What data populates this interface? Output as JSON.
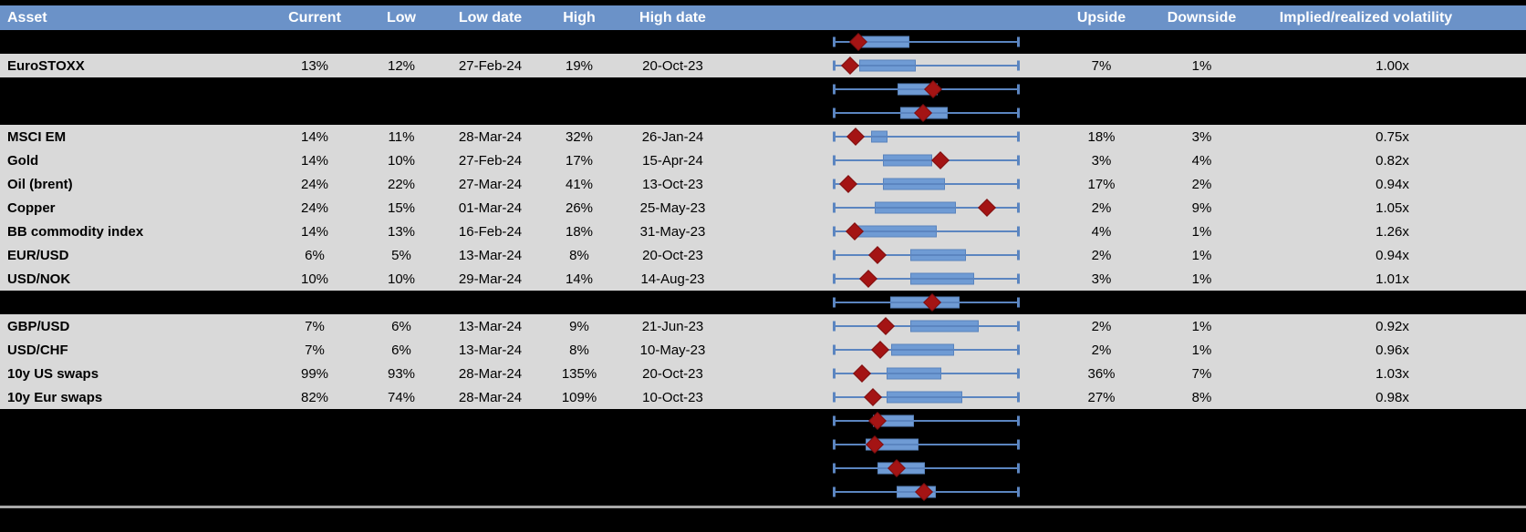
{
  "header": {
    "cols": [
      "Asset",
      "Current",
      "Low",
      "Low date",
      "High",
      "High date",
      "",
      "Upside",
      "Downside",
      "Implied/realized volatility"
    ]
  },
  "colors": {
    "header_bg": "#6B92C8",
    "header_text": "#FFFFFF",
    "row_bg": "#D9D9D9",
    "page_bg": "#000000",
    "cell_text": "#000000",
    "box_fill": "#6F9BD4",
    "box_border": "#5983BD",
    "whisker_blue": "#5B85C0",
    "marker_red": "#A41414",
    "separator_gray": "#A8A8A8"
  },
  "table": {
    "rows": [
      {
        "cells": null,
        "plot": {
          "box": [
            0.146,
            0.41
          ],
          "diamond": 0.137
        }
      },
      {
        "cells": {
          "asset": "EuroSTOXX",
          "current": "13%",
          "low": "12%",
          "low_date": "27-Feb-24",
          "high": "19%",
          "high_date": "20-Oct-23",
          "upside": "7%",
          "downside": "1%",
          "implied": "1.00x"
        },
        "plot": {
          "box": [
            0.141,
            0.444
          ],
          "diamond": 0.093
        }
      },
      {
        "cells": null,
        "plot": {
          "box": [
            0.346,
            0.561
          ],
          "diamond": 0.537
        }
      },
      {
        "cells": null,
        "plot": {
          "box": [
            0.361,
            0.615
          ],
          "diamond": 0.483
        }
      },
      {
        "cells": {
          "asset": "MSCI EM",
          "current": "14%",
          "low": "11%",
          "low_date": "28-Mar-24",
          "high": "32%",
          "high_date": "26-Jan-24",
          "upside": "18%",
          "downside": "3%",
          "implied": "0.75x"
        },
        "plot": {
          "box": [
            0.205,
            0.293
          ],
          "diamond": 0.122
        }
      },
      {
        "cells": {
          "asset": "Gold",
          "current": "14%",
          "low": "10%",
          "low_date": "27-Feb-24",
          "high": "17%",
          "high_date": "15-Apr-24",
          "upside": "3%",
          "downside": "4%",
          "implied": "0.82x"
        },
        "plot": {
          "box": [
            0.268,
            0.532
          ],
          "diamond": 0.576
        }
      },
      {
        "cells": {
          "asset": "Oil (brent)",
          "current": "24%",
          "low": "22%",
          "low_date": "27-Mar-24",
          "high": "41%",
          "high_date": "13-Oct-23",
          "upside": "17%",
          "downside": "2%",
          "implied": "0.94x"
        },
        "plot": {
          "box": [
            0.268,
            0.6
          ],
          "diamond": 0.083
        }
      },
      {
        "cells": {
          "asset": "Copper",
          "current": "24%",
          "low": "15%",
          "low_date": "01-Mar-24",
          "high": "26%",
          "high_date": "25-May-23",
          "upside": "2%",
          "downside": "9%",
          "implied": "1.05x"
        },
        "plot": {
          "box": [
            0.224,
            0.659
          ],
          "diamond": 0.824
        }
      },
      {
        "cells": {
          "asset": "BB commodity index",
          "current": "14%",
          "low": "13%",
          "low_date": "16-Feb-24",
          "high": "18%",
          "high_date": "31-May-23",
          "upside": "4%",
          "downside": "1%",
          "implied": "1.26x"
        },
        "plot": {
          "box": [
            0.132,
            0.556
          ],
          "diamond": 0.117
        }
      },
      {
        "cells": {
          "asset": "EUR/USD",
          "current": "6%",
          "low": "5%",
          "low_date": "13-Mar-24",
          "high": "8%",
          "high_date": "20-Oct-23",
          "upside": "2%",
          "downside": "1%",
          "implied": "0.94x"
        },
        "plot": {
          "box": [
            0.415,
            0.712
          ],
          "diamond": 0.239
        }
      },
      {
        "cells": {
          "asset": "USD/NOK",
          "current": "10%",
          "low": "10%",
          "low_date": "29-Mar-24",
          "high": "14%",
          "high_date": "14-Aug-23",
          "upside": "3%",
          "downside": "1%",
          "implied": "1.01x"
        },
        "plot": {
          "box": [
            0.415,
            0.756
          ],
          "diamond": 0.19
        }
      },
      {
        "cells": null,
        "plot": {
          "box": [
            0.307,
            0.678
          ],
          "diamond": 0.532
        }
      },
      {
        "cells": {
          "asset": "GBP/USD",
          "current": "7%",
          "low": "6%",
          "low_date": "13-Mar-24",
          "high": "9%",
          "high_date": "21-Jun-23",
          "upside": "2%",
          "downside": "1%",
          "implied": "0.92x"
        },
        "plot": {
          "box": [
            0.415,
            0.78
          ],
          "diamond": 0.283
        }
      },
      {
        "cells": {
          "asset": "USD/CHF",
          "current": "7%",
          "low": "6%",
          "low_date": "13-Mar-24",
          "high": "8%",
          "high_date": "10-May-23",
          "upside": "2%",
          "downside": "1%",
          "implied": "0.96x"
        },
        "plot": {
          "box": [
            0.312,
            0.649
          ],
          "diamond": 0.254
        }
      },
      {
        "cells": {
          "asset": "10y US swaps",
          "current": "99%",
          "low": "93%",
          "low_date": "28-Mar-24",
          "high": "135%",
          "high_date": "20-Oct-23",
          "upside": "36%",
          "downside": "7%",
          "implied": "1.03x"
        },
        "plot": {
          "box": [
            0.288,
            0.58
          ],
          "diamond": 0.156
        }
      },
      {
        "cells": {
          "asset": "10y Eur swaps",
          "current": "82%",
          "low": "74%",
          "low_date": "28-Mar-24",
          "high": "109%",
          "high_date": "10-Oct-23",
          "upside": "27%",
          "downside": "8%",
          "implied": "0.98x"
        },
        "plot": {
          "box": [
            0.288,
            0.693
          ],
          "diamond": 0.215
        }
      },
      {
        "cells": null,
        "plot": {
          "box": [
            0.215,
            0.434
          ],
          "diamond": 0.239
        }
      },
      {
        "cells": null,
        "plot": {
          "box": [
            0.176,
            0.459
          ],
          "diamond": 0.224
        }
      },
      {
        "cells": null,
        "plot": {
          "box": [
            0.239,
            0.493
          ],
          "diamond": 0.341
        }
      },
      {
        "cells": null,
        "plot": {
          "box": [
            0.341,
            0.551
          ],
          "diamond": 0.488
        }
      }
    ]
  },
  "chart_data": {
    "type": "table",
    "title": "Implied volatility monitor with range box plots",
    "columns": [
      "Asset",
      "Current",
      "Low",
      "Low date",
      "High",
      "High date",
      "Upside",
      "Downside",
      "Implied/realized volatility"
    ],
    "rows": [
      [
        "EuroSTOXX",
        "13%",
        "12%",
        "27-Feb-24",
        "19%",
        "20-Oct-23",
        "7%",
        "1%",
        "1.00x"
      ],
      [
        "MSCI EM",
        "14%",
        "11%",
        "28-Mar-24",
        "32%",
        "26-Jan-24",
        "18%",
        "3%",
        "0.75x"
      ],
      [
        "Gold",
        "14%",
        "10%",
        "27-Feb-24",
        "17%",
        "15-Apr-24",
        "3%",
        "4%",
        "0.82x"
      ],
      [
        "Oil (brent)",
        "24%",
        "22%",
        "27-Mar-24",
        "41%",
        "13-Oct-23",
        "17%",
        "2%",
        "0.94x"
      ],
      [
        "Copper",
        "24%",
        "15%",
        "01-Mar-24",
        "26%",
        "25-May-23",
        "2%",
        "9%",
        "1.05x"
      ],
      [
        "BB commodity index",
        "14%",
        "13%",
        "16-Feb-24",
        "18%",
        "31-May-23",
        "4%",
        "1%",
        "1.26x"
      ],
      [
        "EUR/USD",
        "6%",
        "5%",
        "13-Mar-24",
        "8%",
        "20-Oct-23",
        "2%",
        "1%",
        "0.94x"
      ],
      [
        "USD/NOK",
        "10%",
        "10%",
        "29-Mar-24",
        "14%",
        "14-Aug-23",
        "3%",
        "1%",
        "1.01x"
      ],
      [
        "GBP/USD",
        "7%",
        "6%",
        "13-Mar-24",
        "9%",
        "21-Jun-23",
        "2%",
        "1%",
        "0.92x"
      ],
      [
        "USD/CHF",
        "7%",
        "6%",
        "13-Mar-24",
        "8%",
        "10-May-23",
        "2%",
        "1%",
        "0.96x"
      ],
      [
        "10y US swaps",
        "99%",
        "93%",
        "28-Mar-24",
        "135%",
        "20-Oct-23",
        "36%",
        "7%",
        "1.03x"
      ],
      [
        "10y Eur swaps",
        "82%",
        "74%",
        "28-Mar-24",
        "109%",
        "10-Oct-23",
        "27%",
        "8%",
        "0.98x"
      ]
    ],
    "embedded_boxplots": {
      "type": "boxplot-row",
      "note": "Each table row has a horizontal min-max whisker with an interquartile box and a red diamond marking the current value; positions are normalized 0-1 across the whisker span. Rows with asset null are blacked-out rows whose plots remain visible.",
      "plots": [
        {
          "asset": null,
          "box": [
            0.146,
            0.41
          ],
          "diamond": 0.137
        },
        {
          "asset": "EuroSTOXX",
          "box": [
            0.141,
            0.444
          ],
          "diamond": 0.093
        },
        {
          "asset": null,
          "box": [
            0.346,
            0.561
          ],
          "diamond": 0.537
        },
        {
          "asset": null,
          "box": [
            0.361,
            0.615
          ],
          "diamond": 0.483
        },
        {
          "asset": "MSCI EM",
          "box": [
            0.205,
            0.293
          ],
          "diamond": 0.122
        },
        {
          "asset": "Gold",
          "box": [
            0.268,
            0.532
          ],
          "diamond": 0.576
        },
        {
          "asset": "Oil (brent)",
          "box": [
            0.268,
            0.6
          ],
          "diamond": 0.083
        },
        {
          "asset": "Copper",
          "box": [
            0.224,
            0.659
          ],
          "diamond": 0.824
        },
        {
          "asset": "BB commodity index",
          "box": [
            0.132,
            0.556
          ],
          "diamond": 0.117
        },
        {
          "asset": "EUR/USD",
          "box": [
            0.415,
            0.712
          ],
          "diamond": 0.239
        },
        {
          "asset": "USD/NOK",
          "box": [
            0.415,
            0.756
          ],
          "diamond": 0.19
        },
        {
          "asset": null,
          "box": [
            0.307,
            0.678
          ],
          "diamond": 0.532
        },
        {
          "asset": "GBP/USD",
          "box": [
            0.415,
            0.78
          ],
          "diamond": 0.283
        },
        {
          "asset": "USD/CHF",
          "box": [
            0.312,
            0.649
          ],
          "diamond": 0.254
        },
        {
          "asset": "10y US swaps",
          "box": [
            0.288,
            0.58
          ],
          "diamond": 0.156
        },
        {
          "asset": "10y Eur swaps",
          "box": [
            0.288,
            0.693
          ],
          "diamond": 0.215
        },
        {
          "asset": null,
          "box": [
            0.215,
            0.434
          ],
          "diamond": 0.239
        },
        {
          "asset": null,
          "box": [
            0.176,
            0.459
          ],
          "diamond": 0.224
        },
        {
          "asset": null,
          "box": [
            0.239,
            0.493
          ],
          "diamond": 0.341
        },
        {
          "asset": null,
          "box": [
            0.341,
            0.551
          ],
          "diamond": 0.488
        }
      ]
    }
  }
}
